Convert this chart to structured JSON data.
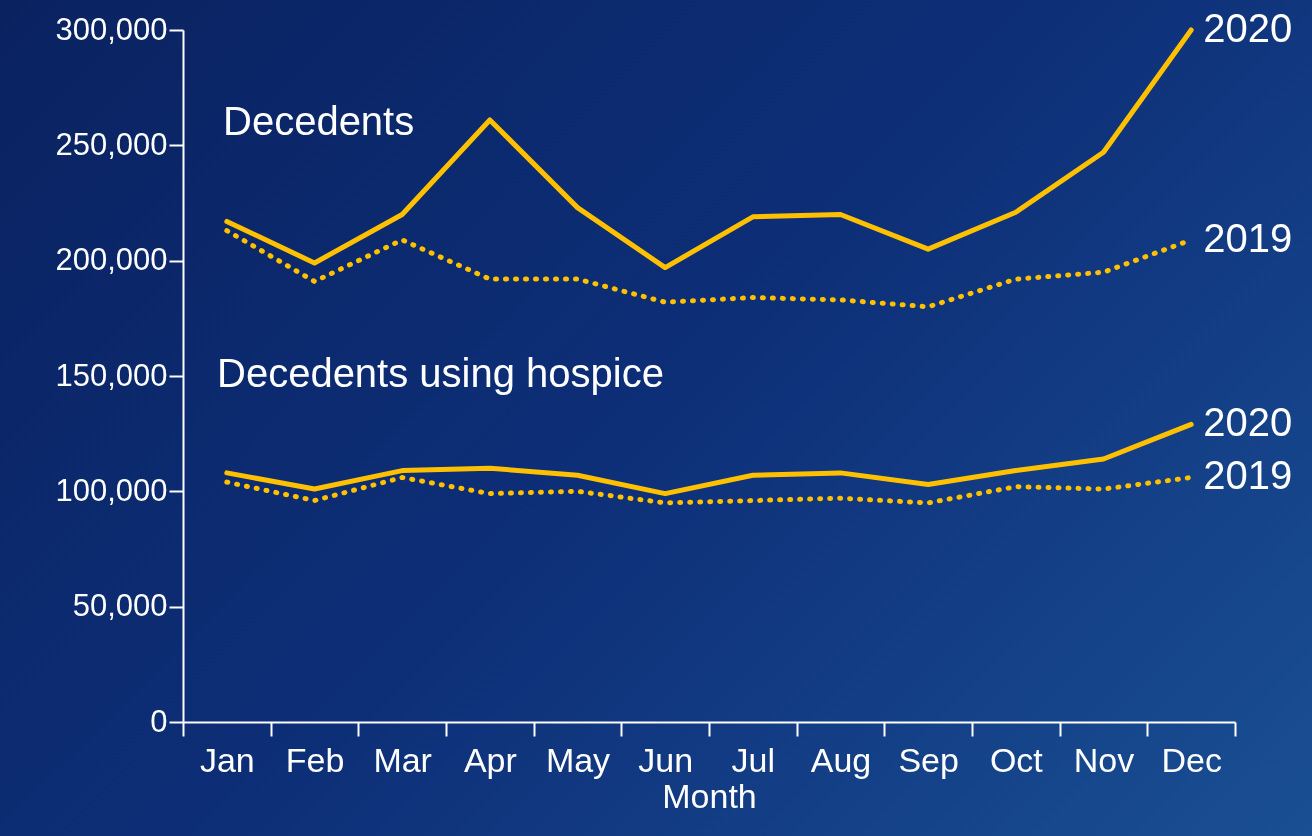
{
  "chart_data": {
    "type": "line",
    "xlabel": "Month",
    "categories": [
      "Jan",
      "Feb",
      "Mar",
      "Apr",
      "May",
      "Jun",
      "Jul",
      "Aug",
      "Sep",
      "Oct",
      "Nov",
      "Dec"
    ],
    "series": [
      {
        "name": "2020",
        "color": "#ffc000",
        "line_style": "solid",
        "values": [
          217000,
          199000,
          220000,
          261000,
          223000,
          197000,
          219000,
          220000,
          205000,
          221000,
          247000,
          300000
        ]
      },
      {
        "name": "2019",
        "color": "#ffc000",
        "line_style": "dotted",
        "values": [
          213000,
          191000,
          209000,
          192000,
          192000,
          182000,
          184000,
          183000,
          180000,
          192000,
          195000,
          209000
        ]
      },
      {
        "name": "2020",
        "color": "#ffc000",
        "line_style": "solid",
        "values": [
          108000,
          101000,
          109000,
          110000,
          107000,
          99000,
          107000,
          108000,
          103000,
          109000,
          114000,
          129000
        ]
      },
      {
        "name": "2019",
        "color": "#ffc000",
        "line_style": "dotted",
        "values": [
          104000,
          96000,
          106000,
          99000,
          100000,
          95000,
          96000,
          97000,
          95000,
          102000,
          101000,
          106000
        ]
      }
    ],
    "ylim": [
      0,
      300000
    ],
    "yticks": [
      {
        "value": 0,
        "label": "0"
      },
      {
        "value": 50000,
        "label": "50,000"
      },
      {
        "value": 100000,
        "label": "100,000"
      },
      {
        "value": 150000,
        "label": "150,000"
      },
      {
        "value": 200000,
        "label": "200,000"
      },
      {
        "value": 250000,
        "label": "250,000"
      },
      {
        "value": 300000,
        "label": "300,000"
      }
    ],
    "annotations": [
      "Decedents",
      "Decedents using hospice"
    ],
    "grid": false
  }
}
